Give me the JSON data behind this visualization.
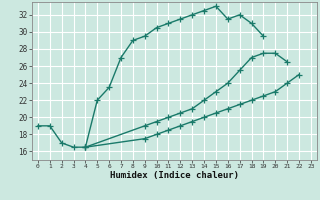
{
  "xlabel": "Humidex (Indice chaleur)",
  "bg_color": "#cce8e0",
  "line_color": "#1a7a6a",
  "grid_color": "#ffffff",
  "xlim": [
    -0.5,
    23.5
  ],
  "ylim": [
    15.0,
    33.5
  ],
  "yticks": [
    16,
    18,
    20,
    22,
    24,
    26,
    28,
    30,
    32
  ],
  "xticks": [
    0,
    1,
    2,
    3,
    4,
    5,
    6,
    7,
    8,
    9,
    10,
    11,
    12,
    13,
    14,
    15,
    16,
    17,
    18,
    19,
    20,
    21,
    22,
    23
  ],
  "line1_x": [
    0,
    1,
    2,
    3,
    4,
    5,
    6,
    7,
    8,
    9,
    10,
    11,
    12,
    13,
    14,
    15,
    16,
    17,
    18,
    19
  ],
  "line1_y": [
    19.0,
    19.0,
    17.0,
    16.5,
    16.5,
    22.0,
    23.5,
    27.0,
    29.0,
    29.5,
    30.5,
    31.0,
    31.5,
    32.0,
    32.5,
    33.0,
    31.5,
    32.0,
    31.0,
    29.5
  ],
  "line2_x": [
    4,
    9,
    10,
    11,
    12,
    13,
    14,
    15,
    16,
    17,
    18,
    19,
    20,
    21
  ],
  "line2_y": [
    16.5,
    19.0,
    19.5,
    20.0,
    20.5,
    21.0,
    22.0,
    23.0,
    24.0,
    25.5,
    27.0,
    27.5,
    27.5,
    26.5
  ],
  "line3_x": [
    4,
    9,
    10,
    11,
    12,
    13,
    14,
    15,
    16,
    17,
    18,
    19,
    20,
    21,
    22
  ],
  "line3_y": [
    16.5,
    17.5,
    18.0,
    18.5,
    19.0,
    19.5,
    20.0,
    20.5,
    21.0,
    21.5,
    22.0,
    22.5,
    23.0,
    24.0,
    25.0
  ],
  "marker_size": 4,
  "line_width": 1.0
}
